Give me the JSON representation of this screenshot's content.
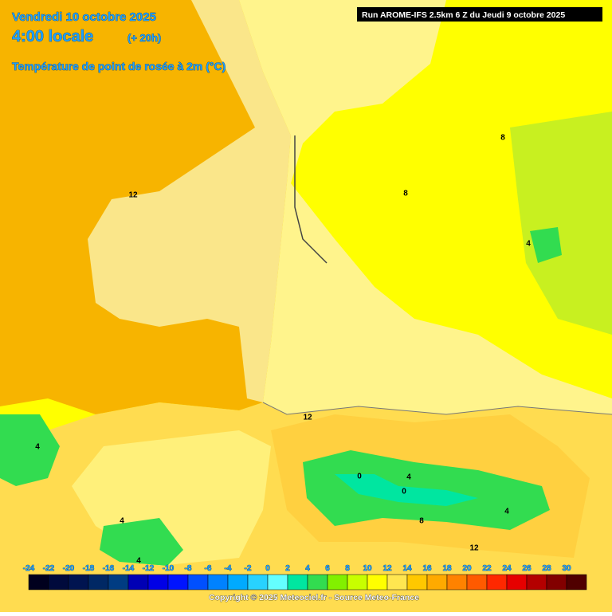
{
  "header": {
    "date": "Vendredi 10 octobre 2025",
    "time": "4:00 locale",
    "lead": "(+ 20h)",
    "variable": "Température de point de rosée à 2m (°C)",
    "run": "Run AROME-IFS 2.5km 6 Z du Jeudi 9 octobre 2025"
  },
  "legend": {
    "labels": [
      -24,
      -22,
      -20,
      -18,
      -16,
      -14,
      -12,
      -10,
      -8,
      -6,
      -4,
      -2,
      0,
      2,
      4,
      6,
      8,
      10,
      12,
      14,
      16,
      18,
      20,
      22,
      24,
      26,
      28,
      30
    ],
    "colors": [
      "#00001e",
      "#000a3c",
      "#001450",
      "#002864",
      "#003c82",
      "#0000b4",
      "#0000e6",
      "#0014ff",
      "#0050ff",
      "#0082ff",
      "#00aaff",
      "#28d2ff",
      "#64ffff",
      "#00e6a0",
      "#32dc50",
      "#82f000",
      "#c8ff00",
      "#ffff00",
      "#ffe650",
      "#ffc800",
      "#ffaa00",
      "#ff8200",
      "#ff5a00",
      "#ff2800",
      "#e60000",
      "#b40000",
      "#820000",
      "#500000"
    ]
  },
  "contour_labels": [
    12,
    8,
    8,
    4,
    12,
    4,
    0,
    0,
    4,
    4,
    8,
    4,
    4,
    12
  ],
  "footer": "Copyright © 2025 Meteociel.fr - Source Meteo-France"
}
